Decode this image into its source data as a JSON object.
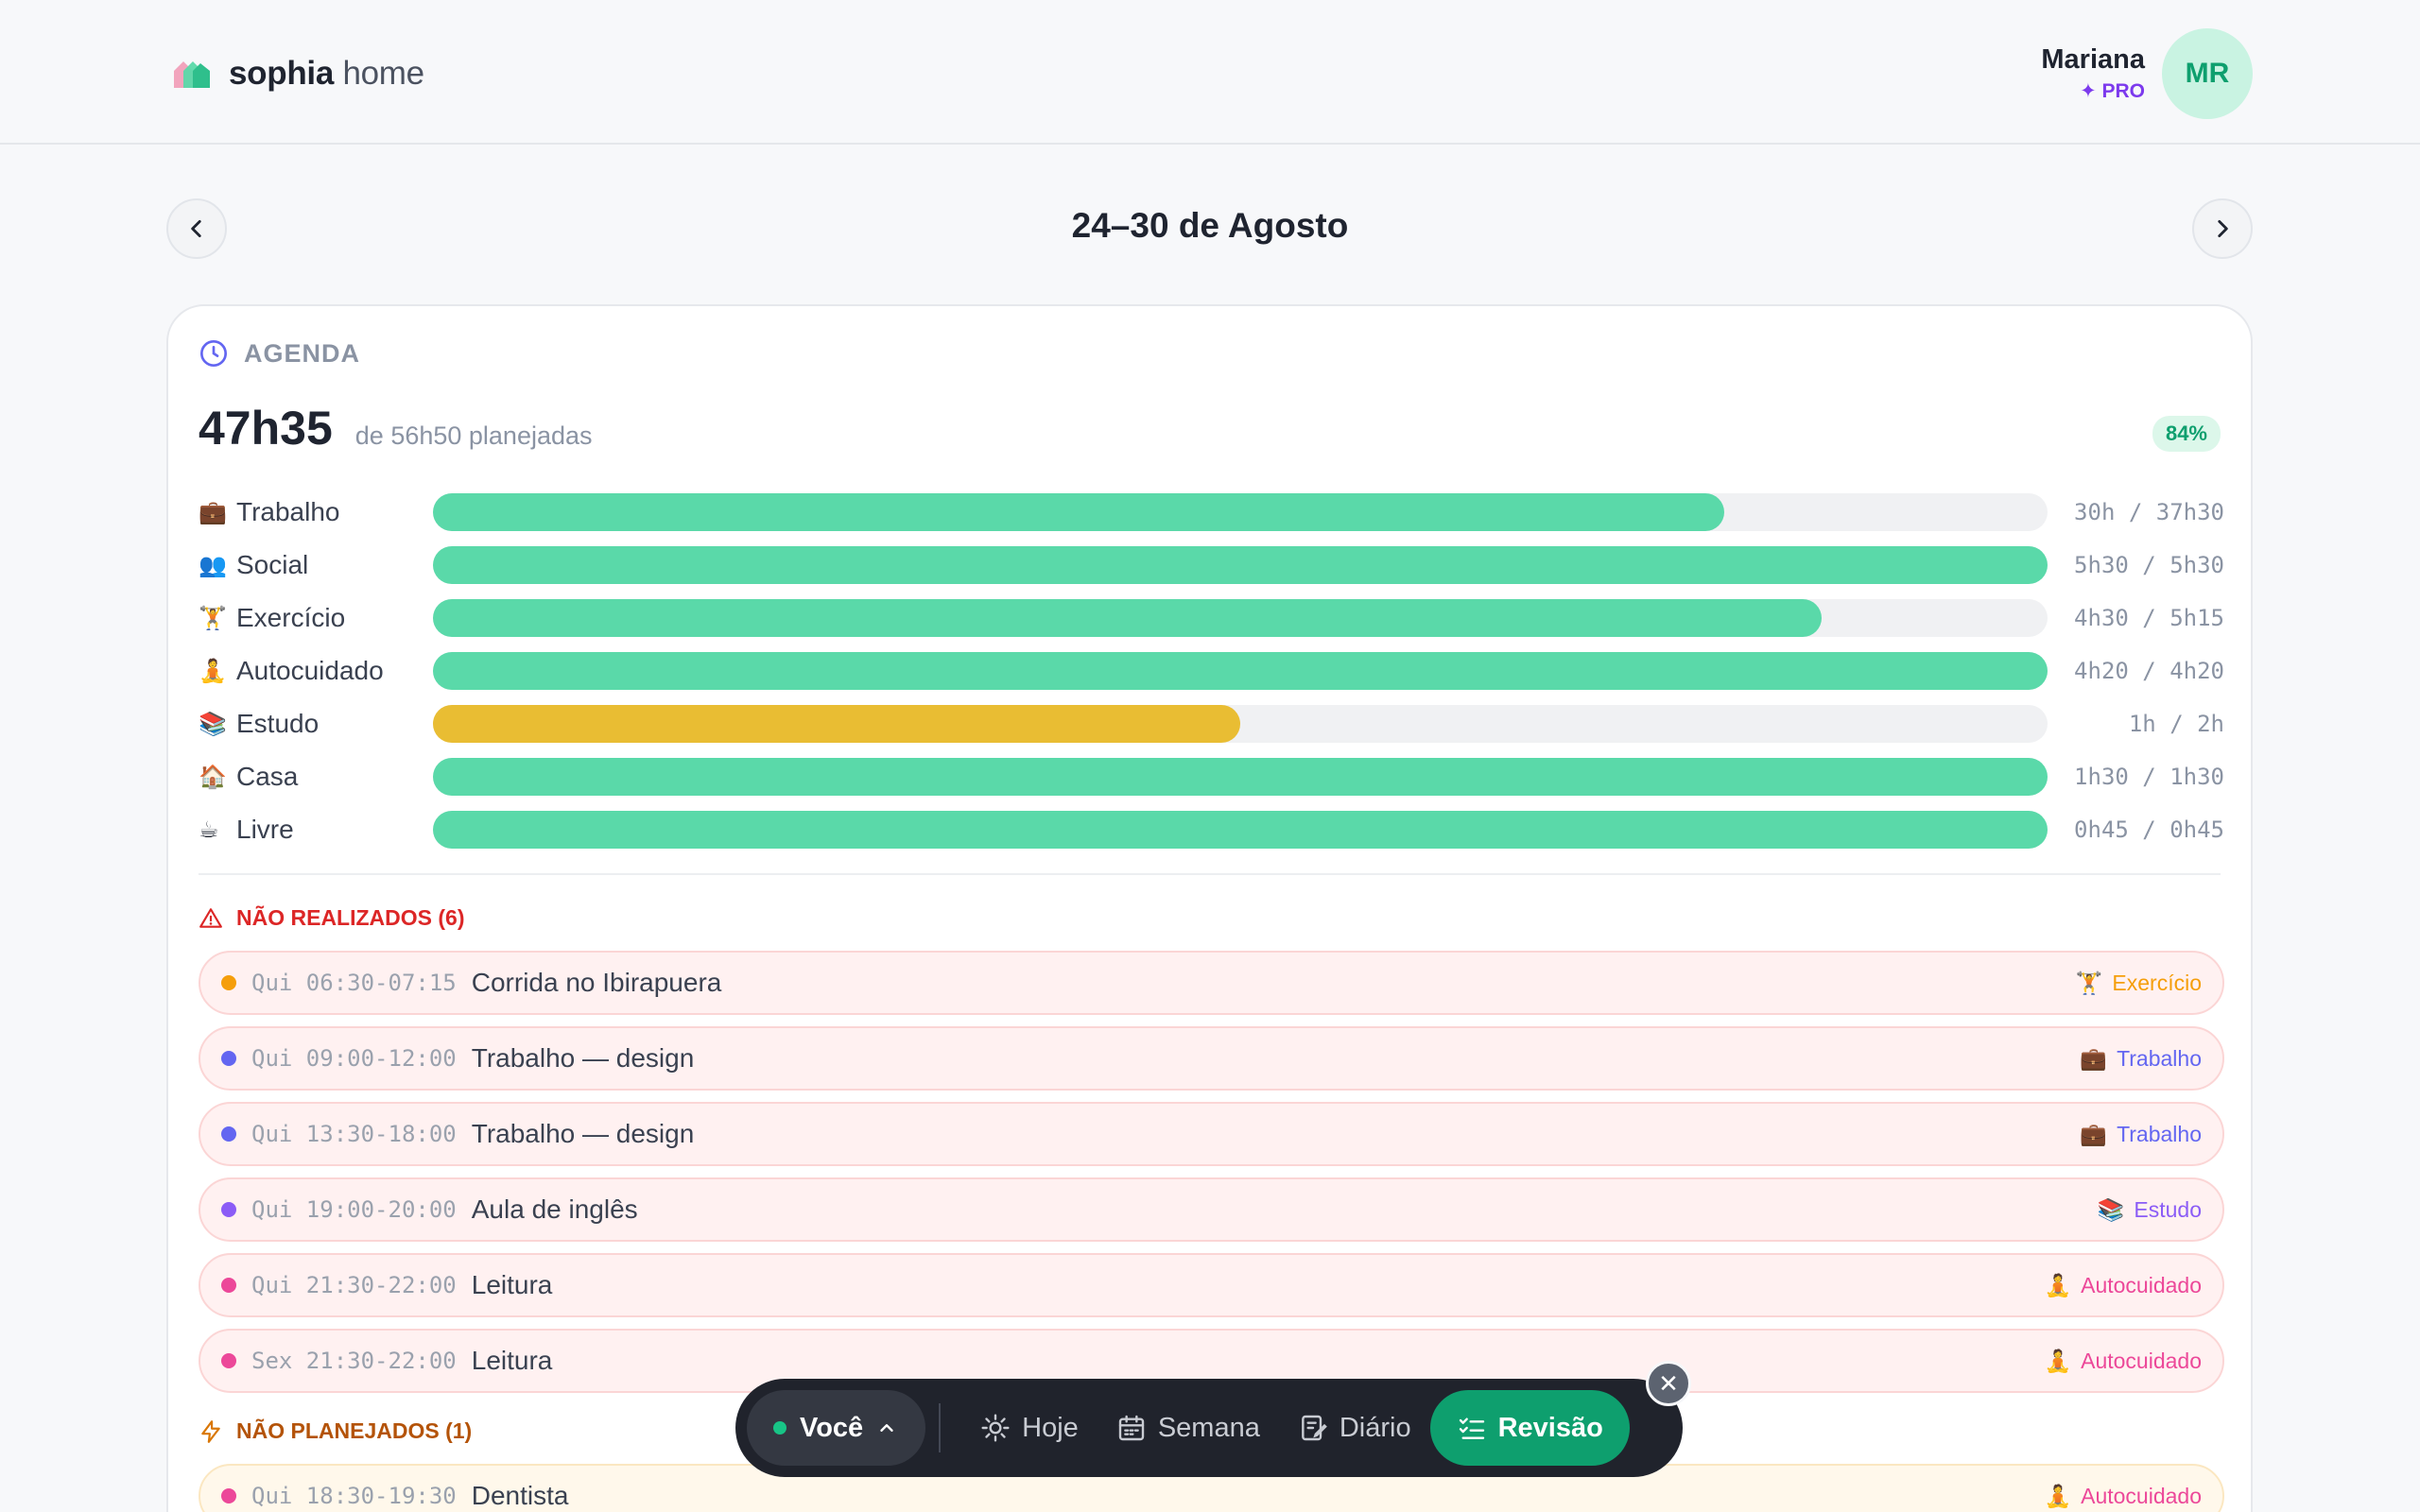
{
  "app": {
    "brand_strong": "sophia",
    "brand_light": "home"
  },
  "user": {
    "name": "Mariana",
    "badge": "✦ PRO",
    "initials": "MR"
  },
  "week": {
    "title": "24–30 de Agosto",
    "prev_icon": "chevron-left-icon",
    "next_icon": "chevron-right-icon"
  },
  "agenda": {
    "section_label": "AGENDA",
    "total_done": "47h35",
    "total_planned": "de 56h50 planejadas",
    "percent": "84%",
    "categories": [
      {
        "emoji": "💼",
        "label": "Trabalho",
        "value": "30h / 37h30",
        "progress": 0.8,
        "status": "ok"
      },
      {
        "emoji": "👥",
        "label": "Social",
        "value": "5h30 / 5h30",
        "progress": 1.0,
        "status": "ok"
      },
      {
        "emoji": "🏋",
        "label": "Exercício",
        "value": "4h30 / 5h15",
        "progress": 0.86,
        "status": "ok"
      },
      {
        "emoji": "🧘",
        "label": "Autocuidado",
        "value": "4h20 / 4h20",
        "progress": 1.0,
        "status": "ok"
      },
      {
        "emoji": "📚",
        "label": "Estudo",
        "value": "1h / 2h",
        "progress": 0.5,
        "status": "warn"
      },
      {
        "emoji": "🏠",
        "label": "Casa",
        "value": "1h30 / 1h30",
        "progress": 1.0,
        "status": "ok"
      },
      {
        "emoji": "☕",
        "label": "Livre",
        "value": "0h45 / 0h45",
        "progress": 1.0,
        "status": "ok"
      }
    ]
  },
  "not_done": {
    "title": "NÃO REALIZADOS (6)",
    "items": [
      {
        "when": "Qui 06:30-07:15",
        "title": "Corrida no Ibirapuera",
        "tag": "Exercício",
        "tag_emoji": "🏋",
        "color": "#f59e0b"
      },
      {
        "when": "Qui 09:00-12:00",
        "title": "Trabalho — design",
        "tag": "Trabalho",
        "tag_emoji": "💼",
        "color": "#6366f1"
      },
      {
        "when": "Qui 13:30-18:00",
        "title": "Trabalho — design",
        "tag": "Trabalho",
        "tag_emoji": "💼",
        "color": "#6366f1"
      },
      {
        "when": "Qui 19:00-20:00",
        "title": "Aula de inglês",
        "tag": "Estudo",
        "tag_emoji": "📚",
        "color": "#8b5cf6"
      },
      {
        "when": "Qui 21:30-22:00",
        "title": "Leitura",
        "tag": "Autocuidado",
        "tag_emoji": "🧘",
        "color": "#ec4899"
      },
      {
        "when": "Sex 21:30-22:00",
        "title": "Leitura",
        "tag": "Autocuidado",
        "tag_emoji": "🧘",
        "color": "#ec4899"
      }
    ]
  },
  "unplanned": {
    "title": "NÃO PLANEJADOS (1)",
    "items": [
      {
        "when": "Qui 18:30-19:30",
        "title": "Dentista",
        "tag": "Autocuidado",
        "tag_emoji": "🧘",
        "color": "#ec4899"
      }
    ]
  },
  "dock": {
    "profile": "Você",
    "items": [
      {
        "label": "Hoje",
        "icon": "sun-icon",
        "active": false
      },
      {
        "label": "Semana",
        "icon": "calendar-icon",
        "active": false
      },
      {
        "label": "Diário",
        "icon": "journal-icon",
        "active": false
      },
      {
        "label": "Revisão",
        "icon": "checklist-icon",
        "active": true
      }
    ],
    "close": "✕"
  }
}
